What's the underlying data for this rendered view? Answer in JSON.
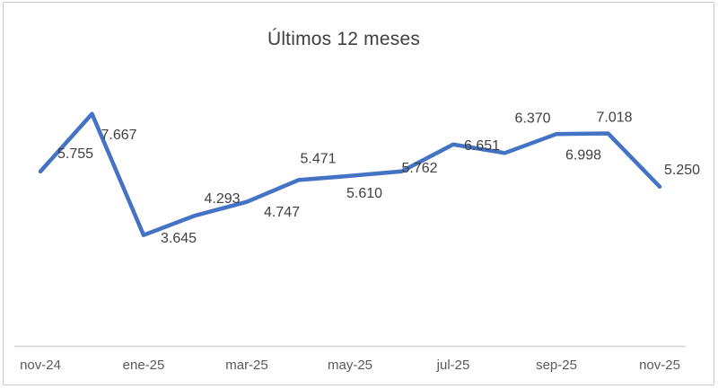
{
  "window": {
    "background": "#ffffff",
    "frame_border_color": "#c9c9c9"
  },
  "chart_data": {
    "type": "line",
    "title": "Últimos 12 meses",
    "series": [
      {
        "name": "Últimos 12 meses",
        "values": [
          5755,
          7667,
          3645,
          4293,
          4747,
          5471,
          5610,
          5762,
          6651,
          6370,
          6998,
          7018,
          5250
        ],
        "point_labels": [
          "5.755",
          "7.667",
          "3.645",
          "4.293",
          "4.747",
          "5.471",
          "5.610",
          "5.762",
          "6.651",
          "6.370",
          "6.998",
          "7.018",
          "5.250"
        ]
      }
    ],
    "x_tick_labels": [
      "nov-24",
      "ene-25",
      "mar-25",
      "may-25",
      "jul-25",
      "sep-25",
      "nov-25"
    ],
    "x_tick_point_indices": [
      0,
      2,
      4,
      6,
      8,
      10,
      12
    ],
    "ylim": [
      0,
      9000
    ],
    "grid": false,
    "legend_position": "none",
    "y_axis_visible": false,
    "line_color": "#4472C4",
    "label_color": "#3f3f3f",
    "tick_color": "#595959",
    "axis_line_color": "#d6d6d6"
  }
}
